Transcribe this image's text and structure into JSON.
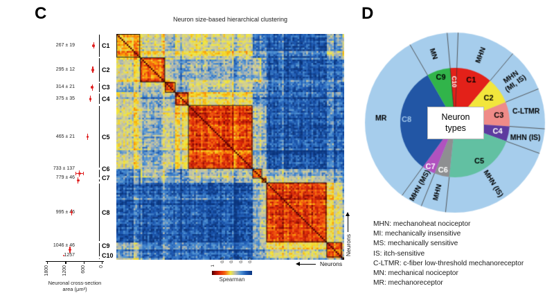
{
  "figure": {
    "panel_c": {
      "panel_label": "C",
      "title": "Neuron size-based hierarchical clustering",
      "neurons_axis_label_bottom": "Neurons",
      "neurons_axis_label_right": "Neurons",
      "area_axis": {
        "caption_line1": "Neuronal cross-section",
        "caption_line2": "area (μm²)",
        "ticks": [
          1800,
          1200,
          600,
          0
        ],
        "max": 1800,
        "reversed": true
      },
      "colorbar": {
        "label": "Spearman",
        "ticks": [
          "1",
          "0.8",
          "0.6",
          "0.4",
          "0.2"
        ]
      }
    },
    "panel_d": {
      "panel_label": "D",
      "center_line1": "Neuron",
      "center_line2": "types"
    }
  },
  "chart_data": [
    {
      "type": "heatmap",
      "title": "Neuron size-based hierarchical clustering",
      "axis_items": "Neurons x Neurons (Spearman correlation matrix, ordered by hierarchical clustering)",
      "colorbar_label": "Spearman",
      "colorbar_ticks": [
        1,
        0.8,
        0.6,
        0.4,
        0.2
      ],
      "clusters": [
        "C1",
        "C2",
        "C3",
        "C4",
        "C5",
        "C6",
        "C7",
        "C8",
        "C9",
        "C10"
      ],
      "cluster_fractions": [
        0.104,
        0.11,
        0.046,
        0.055,
        0.282,
        0.043,
        0.018,
        0.264,
        0.067,
        0.011
      ],
      "cluster_mean_area": [
        {
          "cluster": "C1",
          "stat_label": "267 ± 19",
          "mean": 267,
          "se": 19
        },
        {
          "cluster": "C2",
          "stat_label": "295 ± 12",
          "mean": 295,
          "se": 12
        },
        {
          "cluster": "C3",
          "stat_label": "314 ± 21",
          "mean": 314,
          "se": 21
        },
        {
          "cluster": "C4",
          "stat_label": "375 ± 35",
          "mean": 375,
          "se": 35
        },
        {
          "cluster": "C5",
          "stat_label": "465 ± 21",
          "mean": 465,
          "se": 21
        },
        {
          "cluster": "C6",
          "stat_label": "733 ± 137",
          "mean": 733,
          "se": 137
        },
        {
          "cluster": "C7",
          "stat_label": "779 ± 46",
          "mean": 779,
          "se": 46
        },
        {
          "cluster": "C8",
          "stat_label": "995 ± 46",
          "mean": 995,
          "se": 46
        },
        {
          "cluster": "C9",
          "stat_label": "1046 ± 46",
          "mean": 1046,
          "se": 46
        },
        {
          "cluster": "C10",
          "stat_label": "1257",
          "mean": 1257,
          "se": null
        }
      ],
      "cluster_correlation": [
        [
          0.68,
          0.55,
          0.45,
          0.55,
          0.55,
          0.35,
          0.35,
          0.28,
          0.45,
          0.55
        ],
        [
          0.55,
          0.78,
          0.5,
          0.45,
          0.45,
          0.5,
          0.4,
          0.28,
          0.35,
          0.45
        ],
        [
          0.45,
          0.5,
          0.8,
          0.45,
          0.5,
          0.4,
          0.4,
          0.3,
          0.35,
          0.3
        ],
        [
          0.55,
          0.45,
          0.45,
          0.84,
          0.62,
          0.4,
          0.4,
          0.3,
          0.4,
          0.35
        ],
        [
          0.55,
          0.45,
          0.5,
          0.62,
          0.84,
          0.5,
          0.45,
          0.27,
          0.35,
          0.35
        ],
        [
          0.35,
          0.5,
          0.4,
          0.4,
          0.5,
          0.78,
          0.55,
          0.45,
          0.45,
          0.4
        ],
        [
          0.35,
          0.4,
          0.4,
          0.4,
          0.45,
          0.55,
          0.8,
          0.5,
          0.45,
          0.4
        ],
        [
          0.28,
          0.28,
          0.3,
          0.3,
          0.27,
          0.45,
          0.5,
          0.84,
          0.6,
          0.45
        ],
        [
          0.45,
          0.35,
          0.35,
          0.4,
          0.35,
          0.45,
          0.45,
          0.6,
          0.85,
          0.55
        ],
        [
          0.55,
          0.45,
          0.3,
          0.35,
          0.35,
          0.4,
          0.4,
          0.45,
          0.55,
          0.95
        ]
      ]
    },
    {
      "type": "pie",
      "rings": "inner: size clusters, outer: neuron types",
      "center_label": "Neuron types",
      "outer_ring_color": "#a6cdec",
      "divider_color": "#4a4a4a",
      "segments": [
        {
          "cluster": "C1",
          "type_label": "MHN",
          "start_deg": 2,
          "end_deg": 40,
          "color": "#e32119",
          "text_color": "#000000"
        },
        {
          "cluster": "C2",
          "type_label": "MHN\n(MI, IS)",
          "start_deg": 40,
          "end_deg": 68,
          "color": "#f2e63c",
          "text_color": "#000000"
        },
        {
          "cluster": "C3",
          "type_label": "C-LTMR",
          "start_deg": 68,
          "end_deg": 94,
          "color": "#ef8b88",
          "text_color": "#000000"
        },
        {
          "cluster": "C4",
          "type_label": "MHN (IS)",
          "start_deg": 94,
          "end_deg": 110,
          "color": "#5d3a9f",
          "text_color": "#ffffff"
        },
        {
          "cluster": "C5",
          "type_label": "MHN (IS)",
          "start_deg": 110,
          "end_deg": 186,
          "color": "#62c0a2",
          "text_color": "#000000"
        },
        {
          "cluster": "C6",
          "type_label": "MHN",
          "start_deg": 186,
          "end_deg": 202,
          "color": "#8e8f91",
          "text_color": "#ffffff"
        },
        {
          "cluster": "C7",
          "type_label": "MHN (MS)",
          "start_deg": 202,
          "end_deg": 216,
          "color": "#b052bf",
          "text_color": "#ffffff"
        },
        {
          "cluster": "C8",
          "type_label": "MR",
          "start_deg": 216,
          "end_deg": 330,
          "color": "#2256a5",
          "text_color": "#9dc3e8"
        },
        {
          "cluster": "C9",
          "type_label": "MN",
          "start_deg": 330,
          "end_deg": 355,
          "color": "#31b44a",
          "text_color": "#000000"
        },
        {
          "cluster": "C10",
          "type_label": "",
          "start_deg": 355,
          "end_deg": 362,
          "color": "#e32119",
          "text_color": "#ffffff"
        }
      ],
      "legend": [
        "MHN: mechanoheat nociceptor",
        "MI: mechanically insensitive",
        "MS: mechanically sensitive",
        "IS: itch-sensitive",
        "C-LTMR: c-fiber low-threshold mechanoreceptor",
        "MN: mechanical nociceptor",
        "MR: mechanoreceptor"
      ]
    }
  ]
}
